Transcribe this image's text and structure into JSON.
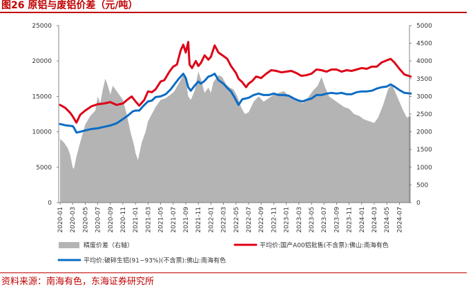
{
  "figure": {
    "title": "图26 原铝与废铝价差（元/吨）",
    "source": "资料来源：南海有色，东海证券研究所"
  },
  "colors": {
    "gap_area": "#b4b4b4",
    "primary": "#dd0016",
    "scrap": "#0b6cc4",
    "accent": "#c00000"
  },
  "chart_data": {
    "type": "line",
    "title": "原铝与废铝价差（元/吨）",
    "categories": [
      "2020-01",
      "2020-03",
      "2020-05",
      "2020-07",
      "2020-09",
      "2020-11",
      "2021-01",
      "2021-03",
      "2021-05",
      "2021-07",
      "2021-09",
      "2021-11",
      "2022-01",
      "2022-03",
      "2022-05",
      "2022-07",
      "2022-09",
      "2022-11",
      "2023-01",
      "2023-03",
      "2023-05",
      "2023-07",
      "2023-09",
      "2023-11",
      "2024-01",
      "2024-03",
      "2024-05",
      "2024-07"
    ],
    "left_axis": {
      "ylim": [
        0,
        25000
      ],
      "ticks": [
        0,
        5000,
        10000,
        15000,
        20000,
        25000
      ]
    },
    "right_axis": {
      "ylim": [
        0,
        5000
      ],
      "ticks": [
        0,
        500,
        1000,
        1500,
        2000,
        2500,
        3000,
        3500,
        4000,
        4500,
        5000
      ]
    },
    "series": [
      {
        "name": "精废价差（右轴）",
        "type": "area",
        "axis": "right",
        "points": [
          [
            0.0,
            1800
          ],
          [
            0.3,
            1700
          ],
          [
            0.6,
            1550
          ],
          [
            0.8,
            1350
          ],
          [
            1.0,
            1000
          ],
          [
            1.1,
            950
          ],
          [
            1.3,
            1300
          ],
          [
            1.6,
            1700
          ],
          [
            2.0,
            2200
          ],
          [
            2.4,
            2450
          ],
          [
            2.8,
            2600
          ],
          [
            3.0,
            3000
          ],
          [
            3.2,
            2800
          ],
          [
            3.4,
            3200
          ],
          [
            3.6,
            3500
          ],
          [
            3.8,
            3300
          ],
          [
            4.0,
            3050
          ],
          [
            4.2,
            3300
          ],
          [
            4.6,
            3100
          ],
          [
            5.0,
            2900
          ],
          [
            5.3,
            2500
          ],
          [
            5.6,
            2000
          ],
          [
            5.9,
            1600
          ],
          [
            6.0,
            1400
          ],
          [
            6.2,
            1200
          ],
          [
            6.5,
            1700
          ],
          [
            6.8,
            2000
          ],
          [
            7.0,
            2300
          ],
          [
            7.3,
            2500
          ],
          [
            7.6,
            2700
          ],
          [
            8.0,
            2900
          ],
          [
            8.4,
            2950
          ],
          [
            8.8,
            3050
          ],
          [
            9.1,
            3150
          ],
          [
            9.5,
            3400
          ],
          [
            9.8,
            3600
          ],
          [
            10.0,
            3500
          ],
          [
            10.2,
            3000
          ],
          [
            10.4,
            2900
          ],
          [
            10.7,
            3150
          ],
          [
            11.0,
            3700
          ],
          [
            11.2,
            3500
          ],
          [
            11.5,
            3100
          ],
          [
            11.8,
            3250
          ],
          [
            12.0,
            3100
          ],
          [
            12.2,
            3400
          ],
          [
            12.6,
            3600
          ],
          [
            12.9,
            3550
          ],
          [
            13.2,
            3350
          ],
          [
            13.5,
            3250
          ],
          [
            13.8,
            3200
          ],
          [
            14.1,
            3000
          ],
          [
            14.4,
            2700
          ],
          [
            14.7,
            2500
          ],
          [
            15.0,
            2550
          ],
          [
            15.4,
            2850
          ],
          [
            15.8,
            3000
          ],
          [
            16.2,
            2850
          ],
          [
            16.6,
            2950
          ],
          [
            17.0,
            3050
          ],
          [
            17.4,
            3100
          ],
          [
            17.8,
            3150
          ],
          [
            18.1,
            3050
          ],
          [
            18.5,
            3000
          ],
          [
            18.9,
            2900
          ],
          [
            19.3,
            2800
          ],
          [
            19.7,
            2950
          ],
          [
            20.1,
            3150
          ],
          [
            20.5,
            3300
          ],
          [
            20.8,
            3550
          ],
          [
            21.1,
            3250
          ],
          [
            21.4,
            3000
          ],
          [
            21.8,
            2900
          ],
          [
            22.2,
            2800
          ],
          [
            22.6,
            2700
          ],
          [
            23.0,
            2650
          ],
          [
            23.4,
            2500
          ],
          [
            23.8,
            2450
          ],
          [
            24.2,
            2350
          ],
          [
            24.6,
            2300
          ],
          [
            25.0,
            2250
          ],
          [
            25.3,
            2400
          ],
          [
            25.7,
            2750
          ],
          [
            26.1,
            3200
          ],
          [
            26.4,
            3350
          ],
          [
            26.7,
            3100
          ],
          [
            27.0,
            2850
          ],
          [
            27.3,
            2600
          ],
          [
            27.6,
            2400
          ],
          [
            27.9,
            2450
          ]
        ]
      },
      {
        "name": "平均价:国产A00铝批售(不含票):佛山:南海有色",
        "type": "line",
        "axis": "left",
        "points": [
          [
            0.0,
            13800
          ],
          [
            0.4,
            13400
          ],
          [
            0.8,
            12700
          ],
          [
            1.0,
            12200
          ],
          [
            1.3,
            11300
          ],
          [
            1.6,
            12400
          ],
          [
            2.0,
            13000
          ],
          [
            2.5,
            13600
          ],
          [
            3.0,
            13900
          ],
          [
            3.5,
            14000
          ],
          [
            4.0,
            14200
          ],
          [
            4.5,
            13800
          ],
          [
            5.0,
            14000
          ],
          [
            5.4,
            14600
          ],
          [
            5.7,
            15000
          ],
          [
            6.0,
            14300
          ],
          [
            6.3,
            13700
          ],
          [
            6.7,
            14500
          ],
          [
            7.0,
            15700
          ],
          [
            7.3,
            15600
          ],
          [
            7.6,
            16000
          ],
          [
            8.0,
            17100
          ],
          [
            8.3,
            17300
          ],
          [
            8.7,
            18500
          ],
          [
            9.0,
            19200
          ],
          [
            9.3,
            19500
          ],
          [
            9.6,
            21500
          ],
          [
            9.8,
            22300
          ],
          [
            10.0,
            21200
          ],
          [
            10.2,
            22700
          ],
          [
            10.3,
            19500
          ],
          [
            10.5,
            19000
          ],
          [
            10.8,
            20000
          ],
          [
            11.0,
            19300
          ],
          [
            11.2,
            19700
          ],
          [
            11.5,
            20800
          ],
          [
            11.8,
            20200
          ],
          [
            12.0,
            20600
          ],
          [
            12.3,
            22200
          ],
          [
            12.6,
            21200
          ],
          [
            13.0,
            20700
          ],
          [
            13.3,
            20300
          ],
          [
            13.6,
            19300
          ],
          [
            14.0,
            18300
          ],
          [
            14.2,
            17500
          ],
          [
            14.5,
            17000
          ],
          [
            14.8,
            16300
          ],
          [
            15.0,
            16800
          ],
          [
            15.3,
            17200
          ],
          [
            15.6,
            17800
          ],
          [
            16.0,
            17600
          ],
          [
            16.4,
            18200
          ],
          [
            16.8,
            18700
          ],
          [
            17.2,
            18600
          ],
          [
            17.6,
            18400
          ],
          [
            18.0,
            18500
          ],
          [
            18.4,
            18600
          ],
          [
            18.8,
            18300
          ],
          [
            19.2,
            17900
          ],
          [
            19.6,
            18000
          ],
          [
            20.0,
            18200
          ],
          [
            20.4,
            18800
          ],
          [
            20.8,
            18700
          ],
          [
            21.2,
            18500
          ],
          [
            21.6,
            18800
          ],
          [
            22.0,
            18800
          ],
          [
            22.4,
            18500
          ],
          [
            22.8,
            18700
          ],
          [
            23.2,
            18600
          ],
          [
            23.6,
            18800
          ],
          [
            24.0,
            19000
          ],
          [
            24.4,
            18900
          ],
          [
            24.8,
            19200
          ],
          [
            25.2,
            19200
          ],
          [
            25.6,
            19800
          ],
          [
            26.0,
            20100
          ],
          [
            26.3,
            20300
          ],
          [
            26.6,
            19800
          ],
          [
            27.0,
            18900
          ],
          [
            27.4,
            18100
          ],
          [
            27.9,
            17800
          ]
        ]
      },
      {
        "name": "平均价:破碎生铝(91~93%)(不含票):佛山:南海有色",
        "type": "line",
        "axis": "left",
        "points": [
          [
            0.0,
            11100
          ],
          [
            0.5,
            10900
          ],
          [
            1.0,
            10800
          ],
          [
            1.1,
            10600
          ],
          [
            1.3,
            9900
          ],
          [
            1.6,
            10000
          ],
          [
            2.0,
            10200
          ],
          [
            2.5,
            10400
          ],
          [
            3.0,
            10500
          ],
          [
            3.5,
            10700
          ],
          [
            4.0,
            10900
          ],
          [
            4.5,
            11200
          ],
          [
            5.0,
            11800
          ],
          [
            5.4,
            12300
          ],
          [
            5.8,
            12900
          ],
          [
            6.0,
            13000
          ],
          [
            6.3,
            13000
          ],
          [
            6.6,
            13600
          ],
          [
            7.0,
            14300
          ],
          [
            7.3,
            14400
          ],
          [
            7.6,
            14900
          ],
          [
            8.0,
            15000
          ],
          [
            8.4,
            15300
          ],
          [
            8.8,
            16000
          ],
          [
            9.1,
            16700
          ],
          [
            9.4,
            17400
          ],
          [
            9.6,
            17800
          ],
          [
            9.8,
            18200
          ],
          [
            10.0,
            17600
          ],
          [
            10.2,
            16300
          ],
          [
            10.4,
            15800
          ],
          [
            10.7,
            16500
          ],
          [
            11.0,
            17100
          ],
          [
            11.2,
            16800
          ],
          [
            11.5,
            17200
          ],
          [
            11.8,
            17800
          ],
          [
            12.0,
            17900
          ],
          [
            12.3,
            18200
          ],
          [
            12.6,
            17300
          ],
          [
            13.0,
            16800
          ],
          [
            13.3,
            16200
          ],
          [
            13.6,
            15700
          ],
          [
            13.9,
            14800
          ],
          [
            14.2,
            13800
          ],
          [
            14.5,
            14600
          ],
          [
            15.0,
            14800
          ],
          [
            15.4,
            15200
          ],
          [
            15.8,
            15400
          ],
          [
            16.2,
            15200
          ],
          [
            16.6,
            15200
          ],
          [
            17.0,
            15400
          ],
          [
            17.4,
            15200
          ],
          [
            17.8,
            15200
          ],
          [
            18.2,
            15100
          ],
          [
            18.6,
            14700
          ],
          [
            19.0,
            14400
          ],
          [
            19.3,
            14300
          ],
          [
            19.6,
            14500
          ],
          [
            20.0,
            14700
          ],
          [
            20.4,
            15200
          ],
          [
            20.8,
            15200
          ],
          [
            21.2,
            15400
          ],
          [
            21.6,
            15500
          ],
          [
            22.0,
            15400
          ],
          [
            22.4,
            15500
          ],
          [
            22.8,
            15300
          ],
          [
            23.2,
            15300
          ],
          [
            23.6,
            15600
          ],
          [
            24.0,
            15700
          ],
          [
            24.4,
            15700
          ],
          [
            24.8,
            15800
          ],
          [
            25.2,
            16100
          ],
          [
            25.6,
            16300
          ],
          [
            26.0,
            16400
          ],
          [
            26.3,
            16700
          ],
          [
            26.6,
            16400
          ],
          [
            27.0,
            15900
          ],
          [
            27.4,
            15500
          ],
          [
            27.9,
            15400
          ]
        ]
      }
    ]
  }
}
